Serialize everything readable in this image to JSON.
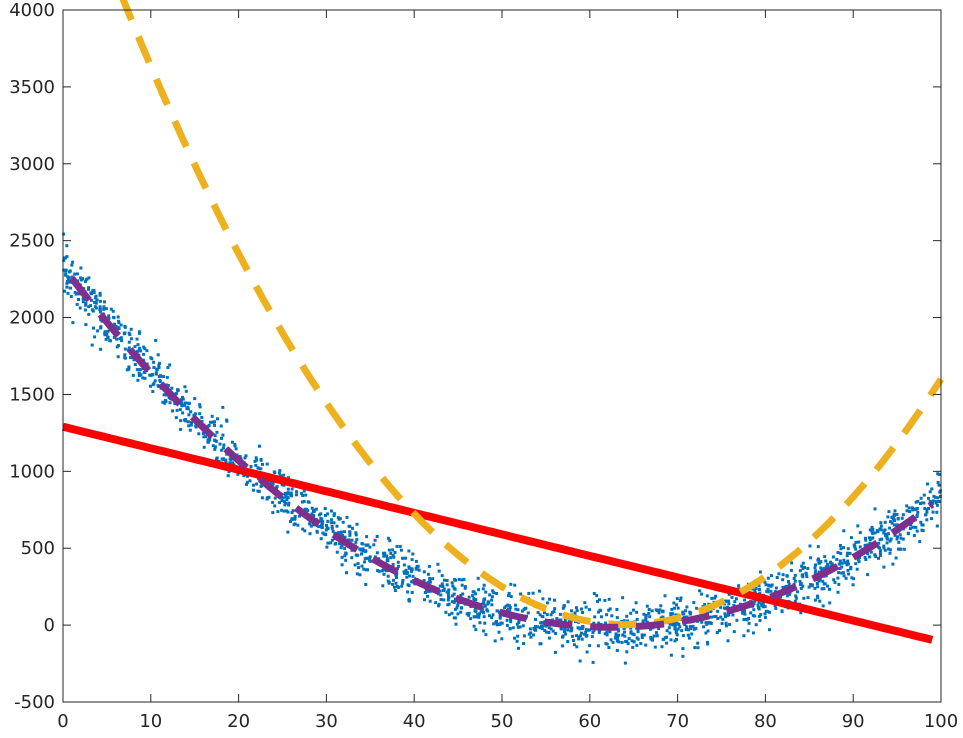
{
  "chart_data": {
    "type": "scatter",
    "title": "",
    "xlabel": "",
    "ylabel": "",
    "xlim": [
      0,
      100
    ],
    "ylim": [
      -500,
      4000
    ],
    "x_ticks": [
      0,
      10,
      20,
      30,
      40,
      50,
      60,
      70,
      80,
      90,
      100
    ],
    "y_ticks": [
      -500,
      0,
      500,
      1000,
      1500,
      2000,
      2500,
      3000,
      3500,
      4000
    ],
    "x_tick_labels": [
      "0",
      "10",
      "20",
      "30",
      "40",
      "50",
      "60",
      "70",
      "80",
      "90",
      "100"
    ],
    "y_tick_labels": [
      "-500",
      "0",
      "500",
      "1000",
      "1500",
      "2000",
      "2500",
      "3000",
      "3500",
      "4000"
    ],
    "grid": false,
    "legend": "none",
    "scatter": {
      "color": "#0072BD",
      "n_points": 2000,
      "trend": "quadratic",
      "coefficients": [
        0.6,
        -75,
        2330
      ],
      "noise_sd": 80
    },
    "series": [
      {
        "type": "line",
        "style": "solid",
        "color": "#FF0000",
        "coefficients": [
          -14,
          1290
        ],
        "x_range": [
          0,
          99
        ]
      },
      {
        "type": "line",
        "style": "dashed",
        "color": "#EDB120",
        "coefficients": [
          1.24,
          -159,
          5100
        ],
        "x_range": [
          1,
          100
        ]
      },
      {
        "type": "line",
        "style": "dashed",
        "color": "#7E2F8E",
        "coefficients": [
          0.6,
          -75,
          2330
        ],
        "x_range": [
          1,
          99
        ]
      }
    ]
  }
}
